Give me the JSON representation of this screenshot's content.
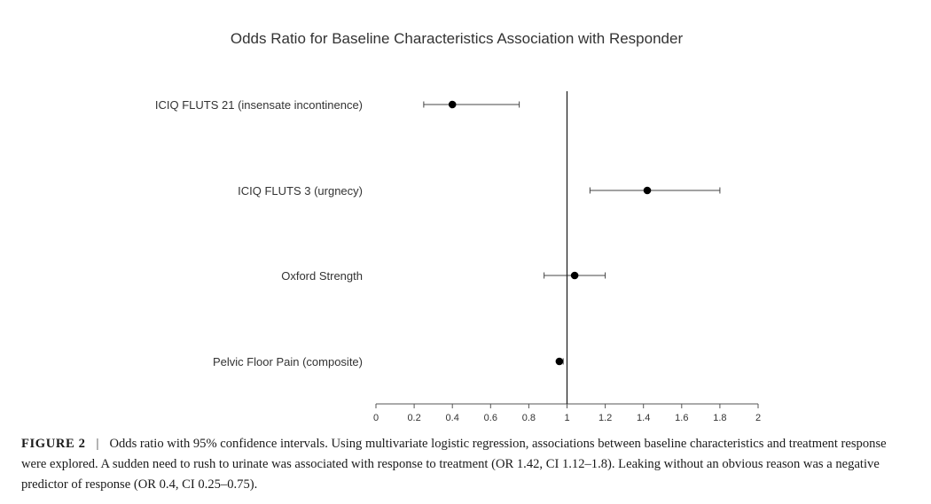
{
  "chart_data": {
    "type": "scatter",
    "title": "Odds Ratio for Baseline Characteristics Association with Responder",
    "xlabel": "",
    "ylabel": "",
    "xlim": [
      0,
      2
    ],
    "x_ticks": [
      "0",
      "0.2",
      "0.4",
      "0.6",
      "0.8",
      "1",
      "1.2",
      "1.4",
      "1.6",
      "1.8",
      "2"
    ],
    "reference_line_x": 1,
    "grid": false,
    "rows": [
      {
        "label": "ICIQ FLUTS 21 (insensate incontinence)",
        "or": 0.4,
        "ci_low": 0.25,
        "ci_high": 0.75
      },
      {
        "label": "ICIQ FLUTS 3 (urgnecy)",
        "or": 1.42,
        "ci_low": 1.12,
        "ci_high": 1.8
      },
      {
        "label": "Oxford Strength",
        "or": 1.04,
        "ci_low": 0.88,
        "ci_high": 1.2
      },
      {
        "label": "Pelvic Floor Pain (composite)",
        "or": 0.96,
        "ci_low": 0.95,
        "ci_high": 0.98
      }
    ]
  },
  "caption": {
    "label": "FIGURE 2",
    "separator": "|",
    "text": "Odds ratio with 95% confidence intervals. Using multivariate logistic regression, associations between baseline characteristics and treatment response were explored. A sudden need to rush to urinate was associated with response to treatment (OR 1.42, CI 1.12–1.8). Leaking without an obvious reason was a negative predictor of response (OR 0.4, CI 0.25–0.75)."
  }
}
